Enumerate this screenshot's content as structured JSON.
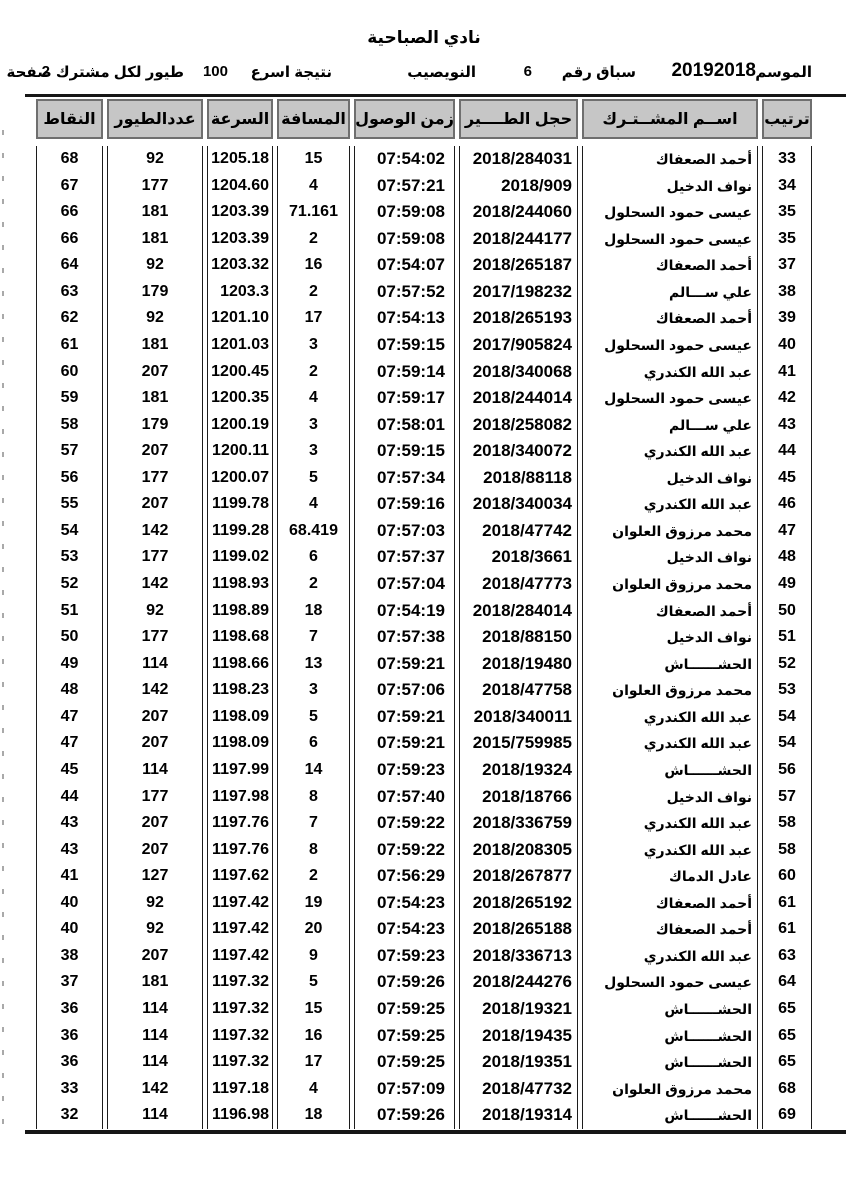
{
  "title": "نادي الصباحية",
  "subtitle": {
    "season_label": "الموسم",
    "season_value": "20192018",
    "race_label": "سباق رقم",
    "race_number": "6",
    "location": "النويصيب",
    "result_label": "نتيجة اسرع",
    "birds_count": "100",
    "per_participant_label": "طيور لكل مشترك صفحة",
    "page_number": "2"
  },
  "table": {
    "headers": {
      "rank": "ترتيب",
      "name": "اســم المشــتـرك",
      "ring": "حجل الطــــير",
      "arrival": "زمن الوصول",
      "distance": "المسافة",
      "speed": "السرعة",
      "birds": "عددالطيور",
      "points": "النقاط"
    },
    "rows": [
      [
        "33",
        "أحمد الصعفاك",
        "2018/284031",
        "07:54:02",
        "15",
        "1205.18",
        "92",
        "68"
      ],
      [
        "34",
        "نواف الدخيل",
        "2018/909",
        "07:57:21",
        "4",
        "1204.60",
        "177",
        "67"
      ],
      [
        "35",
        "عيسى حمود السحلول",
        "2018/244060",
        "07:59:08",
        "71.161",
        "1203.39",
        "181",
        "66"
      ],
      [
        "35",
        "عيسى حمود السحلول",
        "2018/244177",
        "07:59:08",
        "2",
        "1203.39",
        "181",
        "66"
      ],
      [
        "37",
        "أحمد الصعفاك",
        "2018/265187",
        "07:54:07",
        "16",
        "1203.32",
        "92",
        "64"
      ],
      [
        "38",
        "علي ســـالم",
        "2017/198232",
        "07:57:52",
        "2",
        "1203.3",
        "179",
        "63"
      ],
      [
        "39",
        "أحمد الصعفاك",
        "2018/265193",
        "07:54:13",
        "17",
        "1201.10",
        "92",
        "62"
      ],
      [
        "40",
        "عيسى حمود السحلول",
        "2017/905824",
        "07:59:15",
        "3",
        "1201.03",
        "181",
        "61"
      ],
      [
        "41",
        "عبد الله الكندري",
        "2018/340068",
        "07:59:14",
        "2",
        "1200.45",
        "207",
        "60"
      ],
      [
        "42",
        "عيسى حمود السحلول",
        "2018/244014",
        "07:59:17",
        "4",
        "1200.35",
        "181",
        "59"
      ],
      [
        "43",
        "علي ســـالم",
        "2018/258082",
        "07:58:01",
        "3",
        "1200.19",
        "179",
        "58"
      ],
      [
        "44",
        "عبد الله الكندري",
        "2018/340072",
        "07:59:15",
        "3",
        "1200.11",
        "207",
        "57"
      ],
      [
        "45",
        "نواف الدخيل",
        "2018/88118",
        "07:57:34",
        "5",
        "1200.07",
        "177",
        "56"
      ],
      [
        "46",
        "عبد الله الكندري",
        "2018/340034",
        "07:59:16",
        "4",
        "1199.78",
        "207",
        "55"
      ],
      [
        "47",
        "محمد مرزوق العلوان",
        "2018/47742",
        "07:57:03",
        "68.419",
        "1199.28",
        "142",
        "54"
      ],
      [
        "48",
        "نواف الدخيل",
        "2018/3661",
        "07:57:37",
        "6",
        "1199.02",
        "177",
        "53"
      ],
      [
        "49",
        "محمد مرزوق العلوان",
        "2018/47773",
        "07:57:04",
        "2",
        "1198.93",
        "142",
        "52"
      ],
      [
        "50",
        "أحمد الصعفاك",
        "2018/284014",
        "07:54:19",
        "18",
        "1198.89",
        "92",
        "51"
      ],
      [
        "51",
        "نواف الدخيل",
        "2018/88150",
        "07:57:38",
        "7",
        "1198.68",
        "177",
        "50"
      ],
      [
        "52",
        "الحشــــــاش",
        "2018/19480",
        "07:59:21",
        "13",
        "1198.66",
        "114",
        "49"
      ],
      [
        "53",
        "محمد مرزوق العلوان",
        "2018/47758",
        "07:57:06",
        "3",
        "1198.23",
        "142",
        "48"
      ],
      [
        "54",
        "عبد الله الكندري",
        "2018/340011",
        "07:59:21",
        "5",
        "1198.09",
        "207",
        "47"
      ],
      [
        "54",
        "عبد الله الكندري",
        "2015/759985",
        "07:59:21",
        "6",
        "1198.09",
        "207",
        "47"
      ],
      [
        "56",
        "الحشــــــاش",
        "2018/19324",
        "07:59:23",
        "14",
        "1197.99",
        "114",
        "45"
      ],
      [
        "57",
        "نواف الدخيل",
        "2018/18766",
        "07:57:40",
        "8",
        "1197.98",
        "177",
        "44"
      ],
      [
        "58",
        "عبد الله الكندري",
        "2018/336759",
        "07:59:22",
        "7",
        "1197.76",
        "207",
        "43"
      ],
      [
        "58",
        "عبد الله الكندري",
        "2018/208305",
        "07:59:22",
        "8",
        "1197.76",
        "207",
        "43"
      ],
      [
        "60",
        "عادل الدماك",
        "2018/267877",
        "07:56:29",
        "2",
        "1197.62",
        "127",
        "41"
      ],
      [
        "61",
        "أحمد الصعفاك",
        "2018/265192",
        "07:54:23",
        "19",
        "1197.42",
        "92",
        "40"
      ],
      [
        "61",
        "أحمد الصعفاك",
        "2018/265188",
        "07:54:23",
        "20",
        "1197.42",
        "92",
        "40"
      ],
      [
        "63",
        "عبد الله الكندري",
        "2018/336713",
        "07:59:23",
        "9",
        "1197.42",
        "207",
        "38"
      ],
      [
        "64",
        "عيسى حمود السحلول",
        "2018/244276",
        "07:59:26",
        "5",
        "1197.32",
        "181",
        "37"
      ],
      [
        "65",
        "الحشــــــاش",
        "2018/19321",
        "07:59:25",
        "15",
        "1197.32",
        "114",
        "36"
      ],
      [
        "65",
        "الحشــــــاش",
        "2018/19435",
        "07:59:25",
        "16",
        "1197.32",
        "114",
        "36"
      ],
      [
        "65",
        "الحشــــــاش",
        "2018/19351",
        "07:59:25",
        "17",
        "1197.32",
        "114",
        "36"
      ],
      [
        "68",
        "محمد مرزوق العلوان",
        "2018/47732",
        "07:57:09",
        "4",
        "1197.18",
        "142",
        "33"
      ],
      [
        "69",
        "الحشــــــاش",
        "2018/19314",
        "07:59:26",
        "18",
        "1196.98",
        "114",
        "32"
      ]
    ]
  }
}
